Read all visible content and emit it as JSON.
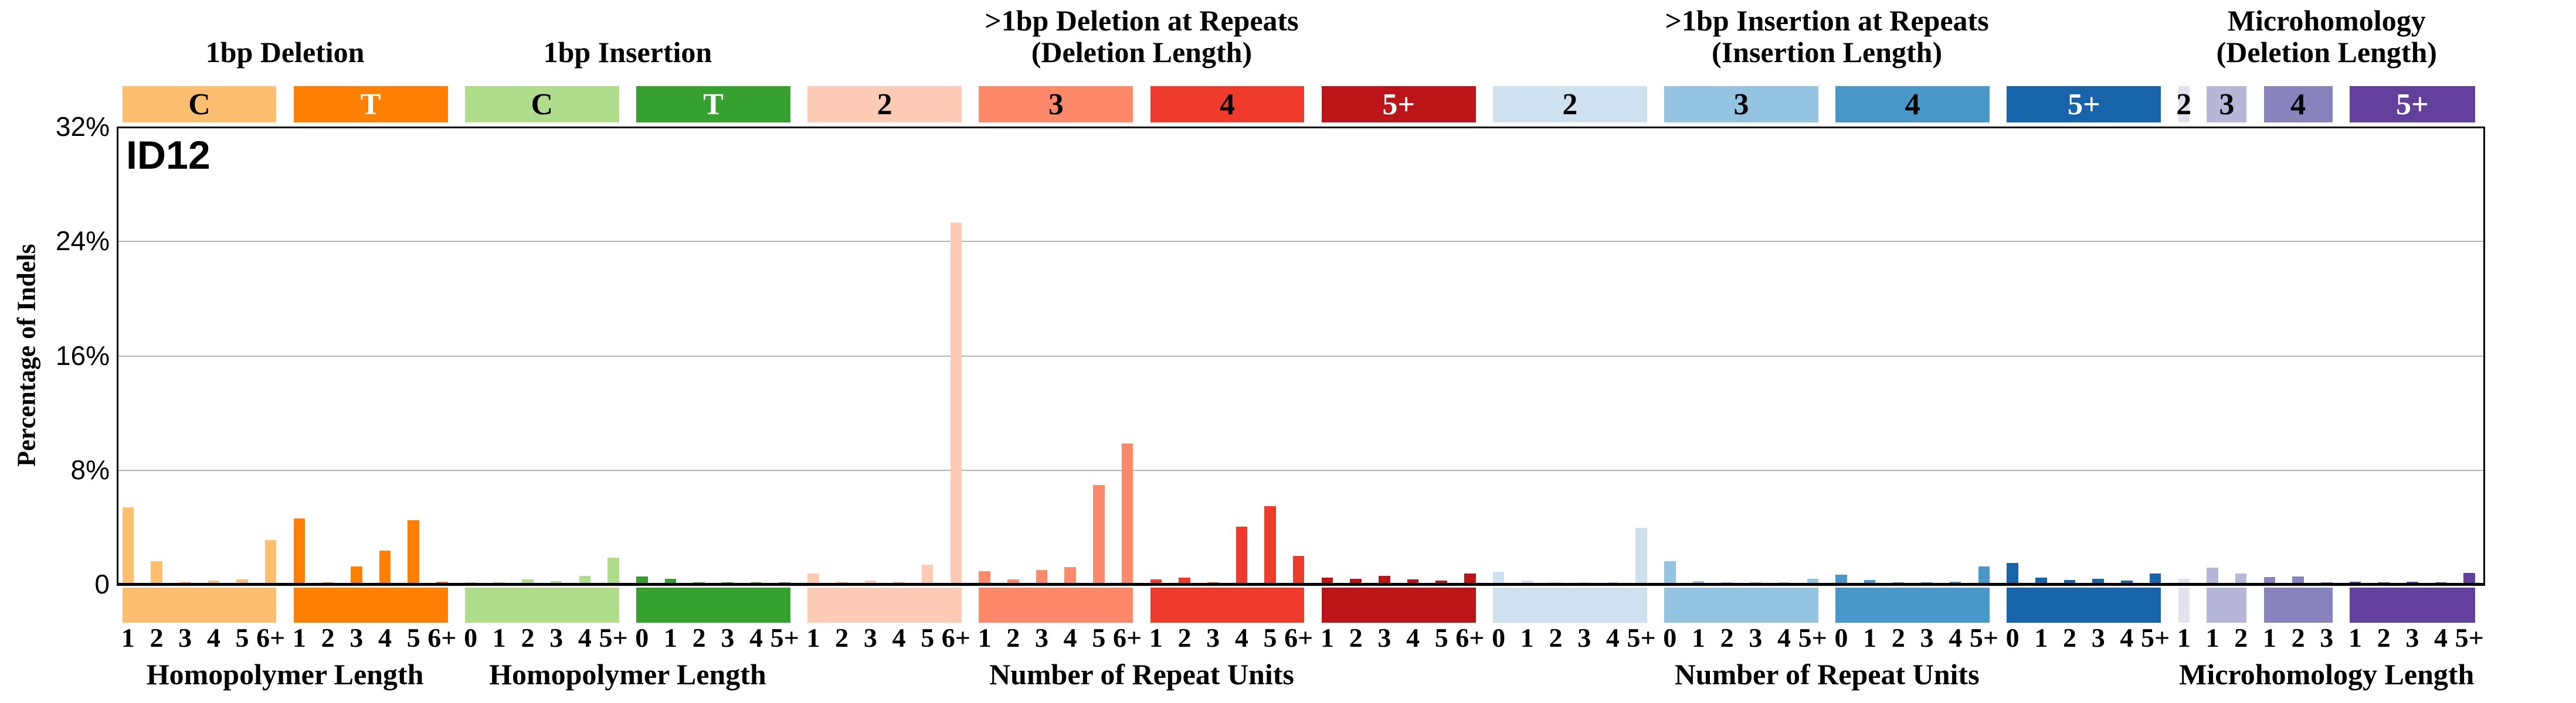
{
  "figure_title": "ID12",
  "y_axis": {
    "title": "Percentage of Indels",
    "max_percent": 32,
    "ticks": [
      {
        "label": "32%",
        "value": 32
      },
      {
        "label": "24%",
        "value": 24
      },
      {
        "label": "16%",
        "value": 16
      },
      {
        "label": "8%",
        "value": 8
      },
      {
        "label": "0",
        "value": 0
      }
    ]
  },
  "sections": [
    {
      "title_lines": [
        "1bp Deletion"
      ],
      "x_axis_label": "Homopolymer Length",
      "group_indices": [
        0,
        1
      ]
    },
    {
      "title_lines": [
        "1bp Insertion"
      ],
      "x_axis_label": "Homopolymer Length",
      "group_indices": [
        2,
        3
      ]
    },
    {
      "title_lines": [
        ">1bp Deletion at Repeats",
        "(Deletion Length)"
      ],
      "x_axis_label": "Number of Repeat Units",
      "group_indices": [
        4,
        5,
        6,
        7
      ]
    },
    {
      "title_lines": [
        ">1bp Insertion at Repeats",
        "(Insertion Length)"
      ],
      "x_axis_label": "Number of Repeat Units",
      "group_indices": [
        8,
        9,
        10,
        11
      ]
    },
    {
      "title_lines": [
        "Microhomology",
        "(Deletion Length)"
      ],
      "x_axis_label": "Microhomology Length",
      "group_indices": [
        12,
        13,
        14,
        15
      ]
    }
  ],
  "chart_data": {
    "type": "bar",
    "title": "ID12",
    "ylabel": "Percentage of Indels",
    "ylim": [
      0,
      32
    ],
    "grid": "horizontal gridlines at 8%, 16%, 24%",
    "legend_position": "none",
    "groups": [
      {
        "section": "1bp Deletion",
        "header": "C",
        "color": "#FDBE6F",
        "header_text_color": "#000000",
        "categories": [
          "1",
          "2",
          "3",
          "4",
          "5",
          "6+"
        ],
        "values": [
          5.3,
          1.5,
          0.07,
          0.15,
          0.25,
          3.0
        ]
      },
      {
        "section": "1bp Deletion",
        "header": "T",
        "color": "#FF8002",
        "header_text_color": "#FFFFFF",
        "categories": [
          "1",
          "2",
          "3",
          "4",
          "5",
          "6+"
        ],
        "values": [
          4.5,
          0.04,
          1.15,
          2.25,
          4.4,
          0.07
        ]
      },
      {
        "section": "1bp Insertion",
        "header": "C",
        "color": "#B0DD8B",
        "header_text_color": "#000000",
        "categories": [
          "0",
          "1",
          "2",
          "3",
          "4",
          "5+"
        ],
        "values": [
          0.02,
          0.02,
          0.25,
          0.14,
          0.5,
          1.75
        ]
      },
      {
        "section": "1bp Insertion",
        "header": "T",
        "color": "#36A12E",
        "header_text_color": "#FFFFFF",
        "categories": [
          "0",
          "1",
          "2",
          "3",
          "4",
          "5+"
        ],
        "values": [
          0.47,
          0.3,
          0.02,
          0.02,
          0.06,
          0.02
        ]
      },
      {
        "section": ">1bp Deletion at Repeats",
        "header": "2",
        "color": "#FDCAB5",
        "header_text_color": "#000000",
        "categories": [
          "1",
          "2",
          "3",
          "4",
          "5",
          "6+"
        ],
        "values": [
          0.66,
          0.07,
          0.15,
          0.1,
          1.25,
          25.2
        ]
      },
      {
        "section": ">1bp Deletion at Repeats",
        "header": "3",
        "color": "#FC8A6A",
        "header_text_color": "#000000",
        "categories": [
          "1",
          "2",
          "3",
          "4",
          "5",
          "6+"
        ],
        "values": [
          0.82,
          0.25,
          0.9,
          1.1,
          6.85,
          9.75
        ]
      },
      {
        "section": ">1bp Deletion at Repeats",
        "header": "4",
        "color": "#EF3B2C",
        "header_text_color": "#000000",
        "categories": [
          "1",
          "2",
          "3",
          "4",
          "5",
          "6+"
        ],
        "values": [
          0.25,
          0.35,
          0.05,
          3.95,
          5.35,
          1.9
        ]
      },
      {
        "section": ">1bp Deletion at Repeats",
        "header": "5+",
        "color": "#BB151A",
        "header_text_color": "#FFFFFF",
        "categories": [
          "1",
          "2",
          "3",
          "4",
          "5",
          "6+"
        ],
        "values": [
          0.38,
          0.3,
          0.5,
          0.25,
          0.15,
          0.65
        ]
      },
      {
        "section": ">1bp Insertion at Repeats",
        "header": "2",
        "color": "#CFE1F0",
        "header_text_color": "#000000",
        "categories": [
          "0",
          "1",
          "2",
          "3",
          "4",
          "5+"
        ],
        "values": [
          0.78,
          0.15,
          0.06,
          0.04,
          0.1,
          3.85
        ]
      },
      {
        "section": ">1bp Insertion at Repeats",
        "header": "3",
        "color": "#94C4DF",
        "header_text_color": "#000000",
        "categories": [
          "0",
          "1",
          "2",
          "3",
          "4",
          "5+"
        ],
        "values": [
          1.53,
          0.12,
          0.03,
          0.03,
          0.05,
          0.3
        ]
      },
      {
        "section": ">1bp Insertion at Repeats",
        "header": "4",
        "color": "#4A98C9",
        "header_text_color": "#000000",
        "categories": [
          "0",
          "1",
          "2",
          "3",
          "4",
          "5+"
        ],
        "values": [
          0.56,
          0.22,
          0.04,
          0.03,
          0.08,
          1.15
        ]
      },
      {
        "section": ">1bp Insertion at Repeats",
        "header": "5+",
        "color": "#1764AB",
        "header_text_color": "#FFFFFF",
        "categories": [
          "0",
          "1",
          "2",
          "3",
          "4",
          "5+"
        ],
        "values": [
          1.4,
          0.38,
          0.22,
          0.3,
          0.18,
          0.65
        ]
      },
      {
        "section": "Microhomology",
        "header": "2",
        "color": "#E2E2EF",
        "header_text_color": "#000000",
        "categories": [
          "1"
        ],
        "values": [
          0.3
        ]
      },
      {
        "section": "Microhomology",
        "header": "3",
        "color": "#B6B6D8",
        "header_text_color": "#000000",
        "categories": [
          "1",
          "2"
        ],
        "values": [
          1.05,
          0.66
        ]
      },
      {
        "section": "Microhomology",
        "header": "4",
        "color": "#8683BD",
        "header_text_color": "#000000",
        "categories": [
          "1",
          "2",
          "3"
        ],
        "values": [
          0.4,
          0.45,
          0.05
        ]
      },
      {
        "section": "Microhomology",
        "header": "5+",
        "color": "#62409B",
        "header_text_color": "#FFFFFF",
        "categories": [
          "1",
          "2",
          "3",
          "4",
          "5+"
        ],
        "values": [
          0.08,
          0.05,
          0.07,
          0.05,
          0.7
        ]
      }
    ]
  }
}
